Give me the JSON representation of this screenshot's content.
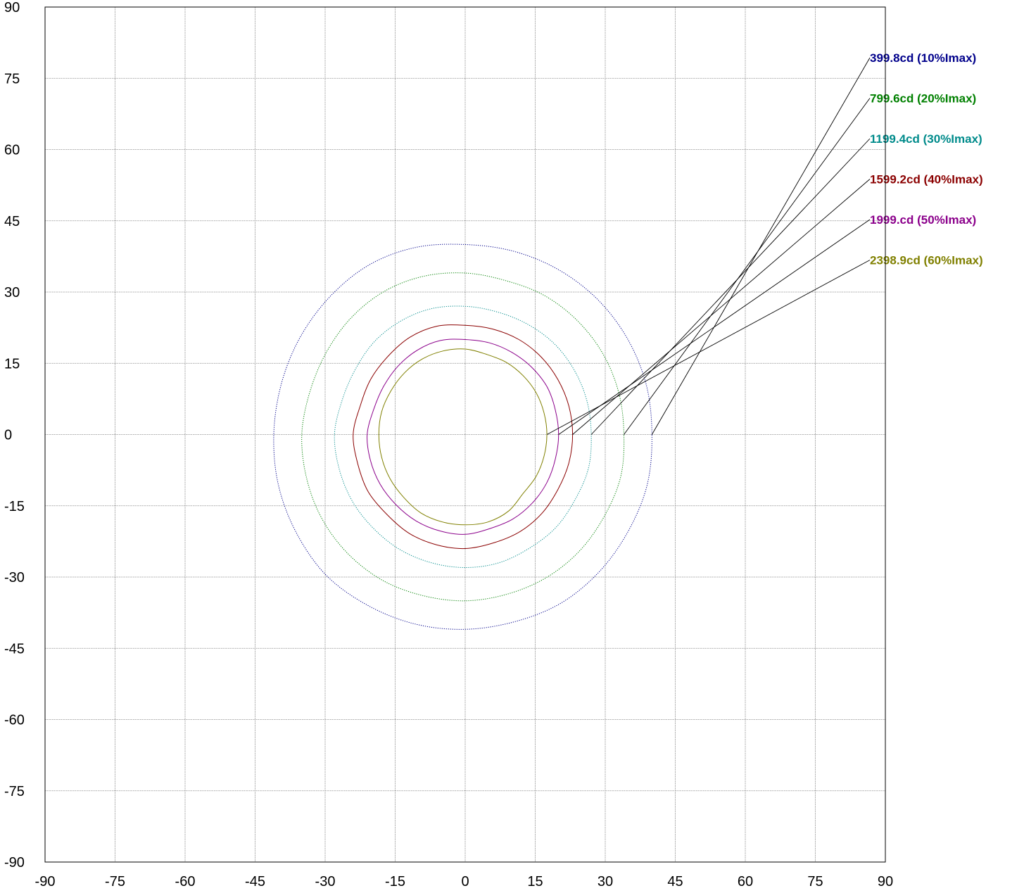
{
  "chart_data": {
    "type": "contour",
    "title": "",
    "xlabel": "",
    "ylabel": "",
    "xlim": [
      -90,
      90
    ],
    "ylim": [
      -90,
      90
    ],
    "x_ticks": [
      "-90",
      "-75",
      "-60",
      "-45",
      "-30",
      "-15",
      "0",
      "15",
      "30",
      "45",
      "60",
      "75",
      "90"
    ],
    "y_ticks": [
      "90",
      "75",
      "60",
      "45",
      "30",
      "15",
      "0",
      "-15",
      "-30",
      "-45",
      "-60",
      "-75",
      "-90"
    ],
    "grid": true,
    "legend_placement": "right",
    "series": [
      {
        "name": "399.8cd (10%Imax)",
        "color": "#00008b",
        "line_style": "dotted",
        "points": [
          [
            40.0,
            0.0
          ],
          [
            38.8,
            10.4
          ],
          [
            34.8,
            20.1
          ],
          [
            28.4,
            28.4
          ],
          [
            20.0,
            34.7
          ],
          [
            10.3,
            38.6
          ],
          [
            0.0,
            40.0
          ],
          [
            -10.6,
            39.4
          ],
          [
            -20.6,
            35.7
          ],
          [
            -29.0,
            29.0
          ],
          [
            -35.4,
            20.4
          ],
          [
            -39.4,
            10.6
          ],
          [
            -41.0,
            0.0
          ],
          [
            -40.0,
            -10.7
          ],
          [
            -36.1,
            -20.8
          ],
          [
            -29.7,
            -29.7
          ],
          [
            -20.8,
            -36.0
          ],
          [
            -10.7,
            -39.9
          ],
          [
            0.0,
            -41.0
          ],
          [
            10.6,
            -39.4
          ],
          [
            20.5,
            -35.5
          ],
          [
            28.8,
            -28.8
          ],
          [
            35.0,
            -20.2
          ],
          [
            39.0,
            -10.5
          ]
        ]
      },
      {
        "name": "799.6cd (20%Imax)",
        "color": "#008000",
        "line_style": "dotted",
        "points": [
          [
            34.0,
            0.0
          ],
          [
            32.9,
            8.8
          ],
          [
            29.5,
            17.0
          ],
          [
            24.0,
            24.0
          ],
          [
            16.9,
            29.3
          ],
          [
            8.7,
            32.4
          ],
          [
            0.0,
            34.0
          ],
          [
            -9.0,
            33.3
          ],
          [
            -17.4,
            30.1
          ],
          [
            -24.5,
            24.5
          ],
          [
            -29.8,
            17.2
          ],
          [
            -33.3,
            8.9
          ],
          [
            -35.0,
            0.0
          ],
          [
            -34.0,
            -9.1
          ],
          [
            -30.7,
            -17.7
          ],
          [
            -25.1,
            -25.1
          ],
          [
            -17.7,
            -30.7
          ],
          [
            -9.1,
            -33.9
          ],
          [
            0.0,
            -35.0
          ],
          [
            9.0,
            -33.6
          ],
          [
            17.4,
            -30.1
          ],
          [
            24.5,
            -24.5
          ],
          [
            29.8,
            -17.2
          ],
          [
            33.3,
            -8.9
          ]
        ]
      },
      {
        "name": "1199.4cd (30%Imax)",
        "color": "#008b8b",
        "line_style": "dotted",
        "points": [
          [
            27.0,
            0.0
          ],
          [
            26.1,
            7.0
          ],
          [
            23.4,
            13.5
          ],
          [
            19.1,
            19.1
          ],
          [
            13.4,
            23.2
          ],
          [
            6.9,
            25.8
          ],
          [
            0.0,
            27.0
          ],
          [
            -7.2,
            26.5
          ],
          [
            -13.8,
            23.9
          ],
          [
            -19.5,
            19.5
          ],
          [
            -23.6,
            13.6
          ],
          [
            -26.4,
            7.1
          ],
          [
            -28.0,
            0.0
          ],
          [
            -27.0,
            -7.2
          ],
          [
            -24.2,
            -14.0
          ],
          [
            -19.7,
            -19.7
          ],
          [
            -14.0,
            -24.2
          ],
          [
            -7.2,
            -27.0
          ],
          [
            0.0,
            -28.0
          ],
          [
            7.2,
            -27.0
          ],
          [
            13.8,
            -23.9
          ],
          [
            19.5,
            -19.5
          ],
          [
            23.6,
            -13.6
          ],
          [
            26.4,
            -7.1
          ]
        ]
      },
      {
        "name": "1599.2cd (40%Imax)",
        "color": "#8b0000",
        "line_style": "solid",
        "points": [
          [
            23.0,
            0.0
          ],
          [
            22.2,
            6.0
          ],
          [
            19.9,
            11.5
          ],
          [
            16.3,
            16.3
          ],
          [
            11.5,
            20.0
          ],
          [
            5.9,
            22.2
          ],
          [
            0.0,
            23.0
          ],
          [
            -6.1,
            22.8
          ],
          [
            -11.8,
            20.5
          ],
          [
            -16.5,
            16.5
          ],
          [
            -20.2,
            11.7
          ],
          [
            -22.5,
            6.0
          ],
          [
            -24.0,
            0.0
          ],
          [
            -23.0,
            -6.2
          ],
          [
            -20.8,
            -12.0
          ],
          [
            -16.8,
            -16.8
          ],
          [
            -12.0,
            -20.8
          ],
          [
            -6.2,
            -23.2
          ],
          [
            0.0,
            -24.0
          ],
          [
            6.1,
            -22.8
          ],
          [
            11.8,
            -20.4
          ],
          [
            16.5,
            -16.5
          ],
          [
            19.9,
            -11.5
          ],
          [
            22.2,
            -6.0
          ]
        ]
      },
      {
        "name": "1999.cd (50%Imax)",
        "color": "#8b008b",
        "line_style": "solid",
        "points": [
          [
            20.0,
            0.0
          ],
          [
            19.3,
            5.2
          ],
          [
            17.5,
            10.1
          ],
          [
            14.2,
            14.2
          ],
          [
            10.0,
            17.3
          ],
          [
            5.2,
            19.3
          ],
          [
            0.0,
            20.0
          ],
          [
            -5.3,
            19.8
          ],
          [
            -10.2,
            17.8
          ],
          [
            -14.4,
            14.4
          ],
          [
            -17.5,
            10.1
          ],
          [
            -19.6,
            5.3
          ],
          [
            -21.0,
            0.0
          ],
          [
            -20.3,
            -5.4
          ],
          [
            -18.2,
            -10.5
          ],
          [
            -14.8,
            -14.8
          ],
          [
            -10.5,
            -18.2
          ],
          [
            -5.4,
            -20.3
          ],
          [
            0.0,
            -21.0
          ],
          [
            5.3,
            -19.8
          ],
          [
            10.2,
            -17.8
          ],
          [
            14.4,
            -14.4
          ],
          [
            17.5,
            -10.1
          ],
          [
            19.3,
            -5.2
          ]
        ]
      },
      {
        "name": "2398.9cd (60%Imax)",
        "color": "#808000",
        "line_style": "solid",
        "points": [
          [
            17.5,
            0.0
          ],
          [
            16.9,
            4.5
          ],
          [
            15.2,
            8.8
          ],
          [
            12.4,
            12.4
          ],
          [
            8.8,
            15.2
          ],
          [
            4.5,
            16.9
          ],
          [
            0.0,
            18.0
          ],
          [
            -4.7,
            17.6
          ],
          [
            -9.2,
            15.9
          ],
          [
            -13.0,
            13.0
          ],
          [
            -15.9,
            9.2
          ],
          [
            -17.9,
            4.8
          ],
          [
            -18.5,
            0.0
          ],
          [
            -17.9,
            -4.8
          ],
          [
            -16.1,
            -9.3
          ],
          [
            -13.2,
            -13.2
          ],
          [
            -9.5,
            -16.5
          ],
          [
            -4.9,
            -18.4
          ],
          [
            0.0,
            -19.0
          ],
          [
            4.9,
            -18.4
          ],
          [
            9.3,
            -16.1
          ],
          [
            12.4,
            -12.4
          ],
          [
            15.2,
            -8.8
          ],
          [
            16.9,
            -4.5
          ]
        ]
      }
    ]
  }
}
